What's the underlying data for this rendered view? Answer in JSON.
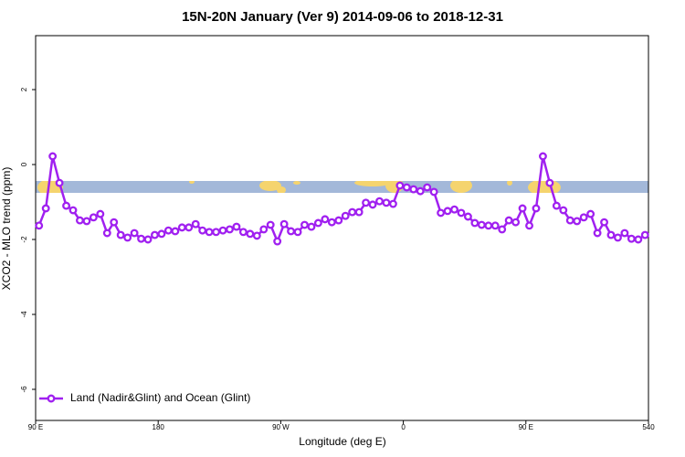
{
  "chart_data": {
    "type": "line",
    "title": "15N-20N January (Ver 9)   2014-09-06 to 2018-12-31",
    "x_label": "Longitude (deg E)",
    "y_label": "XCO2 - MLO trend (ppm)",
    "x": [
      92.5,
      97.5,
      102.5,
      107.5,
      112.5,
      117.5,
      122.5,
      127.5,
      132.5,
      137.5,
      142.5,
      147.5,
      152.5,
      157.5,
      162.5,
      167.5,
      172.5,
      177.5,
      182.5,
      187.5,
      192.5,
      197.5,
      202.5,
      207.5,
      212.5,
      217.5,
      222.5,
      227.5,
      232.5,
      237.5,
      242.5,
      247.5,
      252.5,
      257.5,
      262.5,
      267.5,
      272.5,
      277.5,
      282.5,
      287.5,
      292.5,
      297.5,
      302.5,
      307.5,
      312.5,
      317.5,
      322.5,
      327.5,
      332.5,
      337.5,
      342.5,
      347.5,
      352.5,
      357.5,
      362.5,
      367.5,
      372.5,
      377.5,
      382.5,
      387.5,
      392.5,
      397.5,
      402.5,
      407.5,
      412.5,
      417.5,
      422.5,
      427.5,
      432.5,
      437.5,
      442.5,
      447.5,
      452.5,
      457.5,
      462.5,
      467.5,
      472.5,
      477.5,
      482.5,
      487.5,
      492.5,
      497.5,
      502.5,
      507.5,
      512.5,
      517.5,
      522.5,
      527.5,
      532.5,
      537.5
    ],
    "series": [
      {
        "name": "Land (Nadir&Glint) and Ocean (Glint)",
        "color": "#a020f0",
        "values": [
          -1.63,
          -1.17,
          0.22,
          -0.49,
          -1.1,
          -1.22,
          -1.49,
          -1.51,
          -1.41,
          -1.32,
          -1.83,
          -1.54,
          -1.88,
          -1.95,
          -1.83,
          -1.98,
          -2.0,
          -1.88,
          -1.85,
          -1.76,
          -1.78,
          -1.68,
          -1.68,
          -1.59,
          -1.76,
          -1.8,
          -1.8,
          -1.76,
          -1.73,
          -1.66,
          -1.8,
          -1.85,
          -1.9,
          -1.73,
          -1.61,
          -2.05,
          -1.59,
          -1.78,
          -1.8,
          -1.61,
          -1.66,
          -1.56,
          -1.46,
          -1.54,
          -1.49,
          -1.37,
          -1.27,
          -1.27,
          -1.02,
          -1.07,
          -0.98,
          -1.02,
          -1.05,
          -0.56,
          -0.61,
          -0.66,
          -0.71,
          -0.61,
          -0.73,
          -1.29,
          -1.24,
          -1.2,
          -1.29,
          -1.39,
          -1.56,
          -1.61,
          -1.63,
          -1.63,
          -1.73,
          -1.49,
          -1.54,
          -1.17,
          -1.63,
          -1.17,
          0.22,
          -0.49,
          -1.1,
          -1.22,
          -1.49,
          -1.51,
          -1.41,
          -1.32,
          -1.83,
          -1.54,
          -1.88,
          -1.95,
          -1.83,
          -1.98,
          -2.0,
          -1.88
        ]
      }
    ],
    "xlim": [
      90,
      540
    ],
    "xticks": [
      {
        "value": 90,
        "label": "90 E"
      },
      180,
      {
        "value": 270,
        "label": "90 W"
      },
      {
        "value": 360,
        "label": "0"
      },
      {
        "value": 450,
        "label": "90 E"
      },
      540
    ],
    "ylim": [
      -6.83,
      3.44
    ],
    "yticks": [
      -6,
      -4,
      -2,
      0,
      2
    ],
    "legend": "bottom-left"
  }
}
